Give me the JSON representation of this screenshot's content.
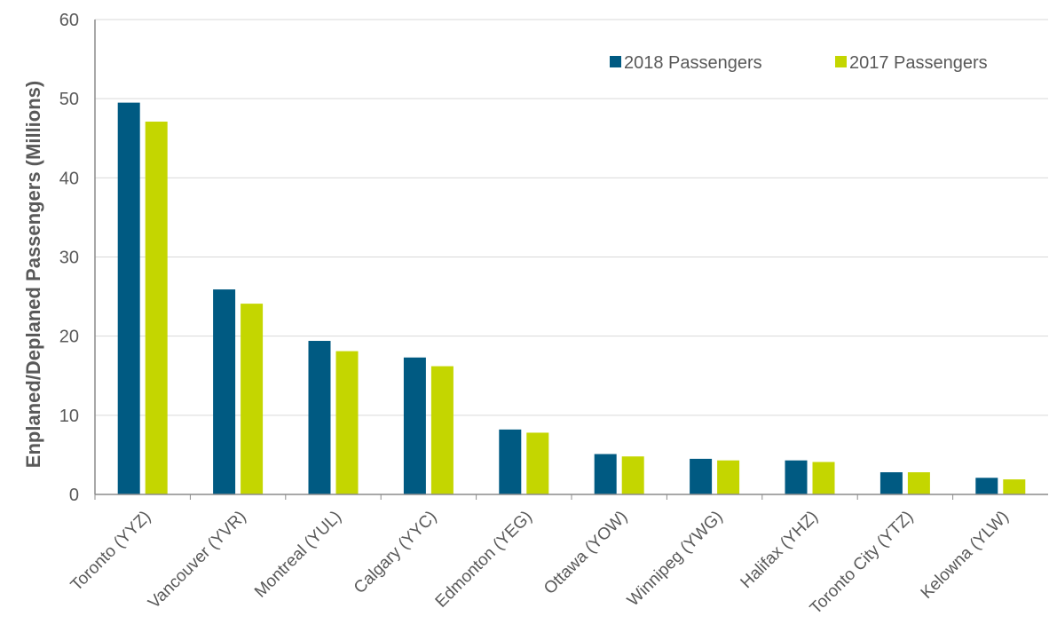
{
  "chart_data": {
    "type": "bar",
    "title": "",
    "xlabel": "",
    "ylabel": "Enplaned/Deplaned Passengers (Millions)",
    "ylim": [
      0,
      60
    ],
    "yticks": [
      "0",
      "10",
      "20",
      "30",
      "40",
      "50",
      "60"
    ],
    "grid": true,
    "legend_position": "top-right",
    "categories": [
      "Toronto (YYZ)",
      "Vancouver (YVR)",
      "Montreal (YUL)",
      "Calgary (YYC)",
      "Edmonton (YEG)",
      "Ottawa (YOW)",
      "Winnipeg (YWG)",
      "Halifax (YHZ)",
      "Toronto City (YTZ)",
      "Kelowna (YLW)"
    ],
    "series": [
      {
        "name": "2018 Passengers",
        "color": "#005a82",
        "values": [
          49.5,
          25.9,
          19.4,
          17.3,
          8.2,
          5.1,
          4.5,
          4.3,
          2.8,
          2.1
        ]
      },
      {
        "name": "2017 Passengers",
        "color": "#c4d600",
        "values": [
          47.1,
          24.1,
          18.1,
          16.2,
          7.8,
          4.8,
          4.3,
          4.1,
          2.8,
          1.9
        ]
      }
    ]
  }
}
